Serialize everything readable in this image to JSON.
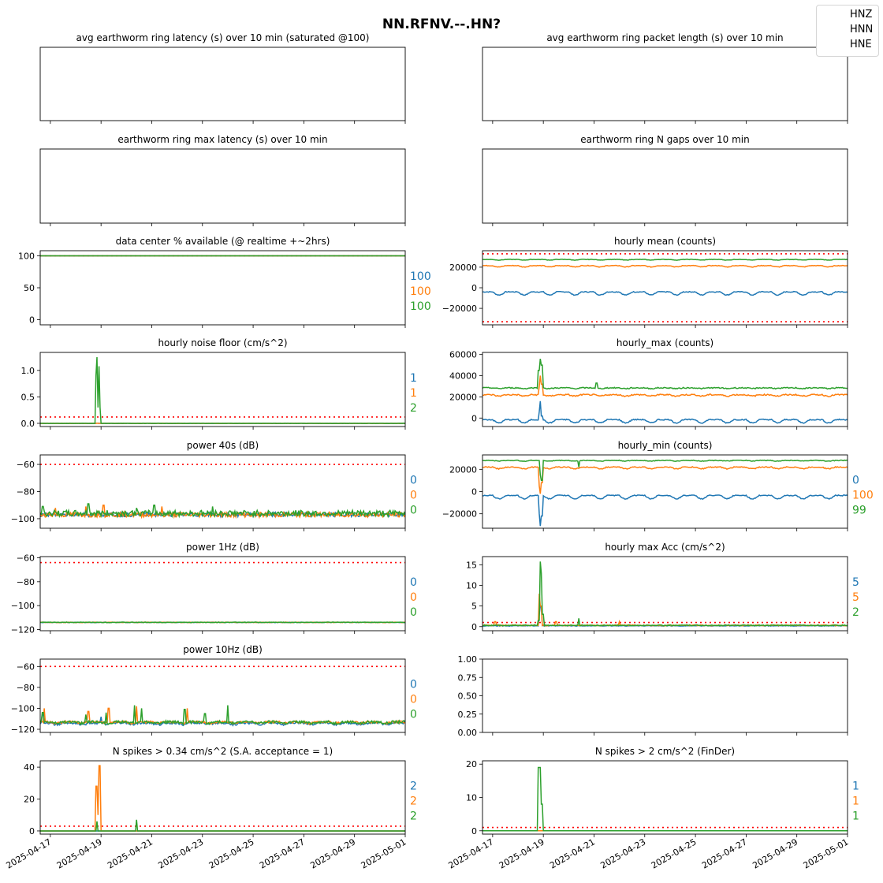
{
  "title": "NN.RFNV.--.HN?",
  "legend": [
    "HNZ",
    "HNN",
    "HNE"
  ],
  "colors": {
    "HNZ": "#1f77b4",
    "HNN": "#ff7f0e",
    "HNE": "#2ca02c",
    "threshold": "#ff0000"
  },
  "chart_data": [
    {
      "id": "p1",
      "type": "line",
      "title": "avg earthworm ring latency (s)   over 10 min (saturated @100)",
      "ylim": null,
      "yticks": [],
      "series": [],
      "thresholds": [],
      "annotations": []
    },
    {
      "id": "p2",
      "type": "line",
      "title": "avg earthworm ring packet length (s)   over 10 min",
      "ylim": null,
      "yticks": [],
      "series": [],
      "thresholds": [],
      "annotations": []
    },
    {
      "id": "p3",
      "type": "line",
      "title": "earthworm ring max latency (s)   over 10 min",
      "ylim": null,
      "yticks": [],
      "series": [],
      "thresholds": [],
      "annotations": []
    },
    {
      "id": "p4",
      "type": "line",
      "title": "earthworm ring N gaps   over 10 min",
      "ylim": null,
      "yticks": [],
      "series": [],
      "thresholds": [],
      "annotations": []
    },
    {
      "id": "p5",
      "type": "line",
      "title": "data center % available (@ realtime +~2hrs)",
      "ylim": [
        -8,
        108
      ],
      "yticks": [
        0,
        50,
        100
      ],
      "series": [
        {
          "name": "HNZ",
          "baseline": 100,
          "noise": 0,
          "spikes": []
        },
        {
          "name": "HNN",
          "baseline": 100,
          "noise": 0,
          "spikes": []
        },
        {
          "name": "HNE",
          "baseline": 100,
          "noise": 0,
          "spikes": []
        }
      ],
      "thresholds": [
        100
      ],
      "annotations": [
        "100",
        "100",
        "100"
      ]
    },
    {
      "id": "p6",
      "type": "line",
      "title": "hourly mean (counts)",
      "ylim": [
        -36000,
        36000
      ],
      "yticks": [
        -20000,
        0,
        20000
      ],
      "series": [
        {
          "name": "HNZ",
          "baseline": -4000,
          "daily_amp": 3000,
          "noise": 400,
          "spikes": []
        },
        {
          "name": "HNN",
          "baseline": 21500,
          "daily_amp": 1600,
          "noise": 300,
          "spikes": []
        },
        {
          "name": "HNE",
          "baseline": 27500,
          "daily_amp": 700,
          "noise": 200,
          "spikes": []
        }
      ],
      "thresholds": [
        33000,
        -33000
      ],
      "annotations": []
    },
    {
      "id": "p7",
      "type": "line",
      "title": "hourly noise floor (cm/s^2)",
      "ylim": [
        -0.06,
        1.34
      ],
      "yticks": [
        0.0,
        0.5,
        1.0
      ],
      "series": [
        {
          "name": "HNZ",
          "baseline": 0.0,
          "noise": 0.002,
          "spikes": []
        },
        {
          "name": "HNN",
          "baseline": 0.0,
          "noise": 0.002,
          "spikes": []
        },
        {
          "name": "HNE",
          "baseline": 0.0,
          "noise": 0.002,
          "spikes": [
            [
              2.8,
              0.9
            ],
            [
              2.85,
              1.25
            ],
            [
              2.9,
              0.3
            ],
            [
              2.93,
              1.08
            ],
            [
              2.96,
              0.3
            ]
          ]
        }
      ],
      "thresholds": [
        0.12
      ],
      "annotations": [
        "1",
        "1",
        "2"
      ]
    },
    {
      "id": "p8",
      "type": "line",
      "title": "hourly_max (counts)",
      "ylim": [
        -8000,
        62000
      ],
      "yticks": [
        0,
        20000,
        40000,
        60000
      ],
      "series": [
        {
          "name": "HNZ",
          "baseline": -1500,
          "daily_amp": 3000,
          "noise": 500,
          "spikes": [
            [
              2.85,
              6000
            ],
            [
              2.9,
              16000
            ],
            [
              2.95,
              2000
            ]
          ]
        },
        {
          "name": "HNN",
          "baseline": 22000,
          "daily_amp": 1500,
          "noise": 600,
          "spikes": [
            [
              2.85,
              30000
            ],
            [
              2.9,
              40000
            ],
            [
              2.95,
              32000
            ]
          ]
        },
        {
          "name": "HNE",
          "baseline": 28500,
          "daily_amp": 800,
          "noise": 500,
          "spikes": [
            [
              2.82,
              45000
            ],
            [
              2.87,
              56000
            ],
            [
              2.93,
              50000
            ],
            [
              5.1,
              33000
            ]
          ]
        }
      ],
      "thresholds": [],
      "annotations": []
    },
    {
      "id": "p9",
      "type": "line",
      "title": "power 40s (dB)",
      "ylim": [
        -107,
        -53
      ],
      "yticks": [
        -100,
        -80,
        -60
      ],
      "series": [
        {
          "name": "HNZ",
          "baseline": -97,
          "noise": 1.5,
          "spikes": []
        },
        {
          "name": "HNN",
          "baseline": -97,
          "noise": 1.8,
          "spikes": [
            [
              1.2,
              -92
            ],
            [
              2.4,
              -91
            ],
            [
              3.1,
              -90
            ],
            [
              5.4,
              -91
            ]
          ]
        },
        {
          "name": "HNE",
          "baseline": -96,
          "noise": 2.2,
          "spikes": [
            [
              0.7,
              -91
            ],
            [
              2.5,
              -89
            ],
            [
              4.4,
              -92
            ],
            [
              5.1,
              -90
            ],
            [
              7.4,
              -91
            ]
          ]
        }
      ],
      "thresholds": [
        -60
      ],
      "annotations": [
        "0",
        "0",
        "0"
      ]
    },
    {
      "id": "p10",
      "type": "line",
      "title": "hourly_min (counts)",
      "ylim": [
        -33000,
        33000
      ],
      "yticks": [
        -20000,
        0,
        20000
      ],
      "series": [
        {
          "name": "HNZ",
          "baseline": -3500,
          "daily_amp": 3000,
          "noise": 400,
          "spikes": [
            [
              2.85,
              -20000
            ],
            [
              2.9,
              -31000
            ],
            [
              2.95,
              -22000
            ]
          ]
        },
        {
          "name": "HNN",
          "baseline": 22000,
          "daily_amp": 1800,
          "noise": 400,
          "spikes": [
            [
              2.85,
              5000
            ],
            [
              2.9,
              -2000
            ],
            [
              2.95,
              8000
            ]
          ]
        },
        {
          "name": "HNE",
          "baseline": 28000,
          "daily_amp": 700,
          "noise": 300,
          "spikes": [
            [
              2.88,
              15000
            ],
            [
              2.93,
              10000
            ],
            [
              4.4,
              22000
            ]
          ]
        }
      ],
      "thresholds": [],
      "annotations": [
        "0",
        "100",
        "99"
      ]
    },
    {
      "id": "p11",
      "type": "line",
      "title": "power 1Hz (dB)",
      "ylim": [
        -121,
        -59
      ],
      "yticks": [
        -120,
        -100,
        -80,
        -60
      ],
      "series": [
        {
          "name": "HNZ",
          "baseline": -114,
          "noise": 0.2,
          "spikes": []
        },
        {
          "name": "HNN",
          "baseline": -114,
          "noise": 0.2,
          "spikes": []
        },
        {
          "name": "HNE",
          "baseline": -114,
          "noise": 0.25,
          "spikes": []
        }
      ],
      "thresholds": [
        -64
      ],
      "annotations": [
        "0",
        "0",
        "0"
      ]
    },
    {
      "id": "p12",
      "type": "line",
      "title": "hourly max Acc (cm/s^2)",
      "ylim": [
        -1,
        17
      ],
      "yticks": [
        0,
        5,
        10,
        15
      ],
      "series": [
        {
          "name": "HNZ",
          "baseline": 0.2,
          "noise": 0.08,
          "spikes": [
            [
              2.85,
              3
            ],
            [
              2.9,
              5
            ]
          ]
        },
        {
          "name": "HNN",
          "baseline": 0.3,
          "noise": 0.1,
          "spikes": [
            [
              1.1,
              1.2
            ],
            [
              2.85,
              8
            ],
            [
              2.9,
              5
            ],
            [
              3.5,
              1.2
            ],
            [
              6.0,
              1.2
            ]
          ]
        },
        {
          "name": "HNE",
          "baseline": 0.3,
          "noise": 0.1,
          "spikes": [
            [
              2.82,
              1.5
            ],
            [
              2.87,
              15.8
            ],
            [
              2.93,
              13
            ],
            [
              2.97,
              3
            ],
            [
              4.4,
              2
            ]
          ]
        }
      ],
      "thresholds": [
        1
      ],
      "annotations": [
        "5",
        "5",
        "2"
      ]
    },
    {
      "id": "p13",
      "type": "line",
      "title": "power 10Hz (dB)",
      "ylim": [
        -123,
        -53
      ],
      "yticks": [
        -120,
        -100,
        -80,
        -60
      ],
      "series": [
        {
          "name": "HNZ",
          "baseline": -114,
          "daily_amp": 1.5,
          "noise": 1.0,
          "spikes": [
            [
              0.7,
              -106
            ],
            [
              3.0,
              -108
            ]
          ]
        },
        {
          "name": "HNN",
          "baseline": -113,
          "daily_amp": 1.5,
          "noise": 1.0,
          "spikes": [
            [
              0.75,
              -100
            ],
            [
              2.5,
              -103
            ],
            [
              3.3,
              -100
            ],
            [
              4.4,
              -98
            ],
            [
              6.4,
              -100
            ]
          ]
        },
        {
          "name": "HNE",
          "baseline": -113,
          "daily_amp": 1.5,
          "noise": 1.2,
          "spikes": [
            [
              0.7,
              -104
            ],
            [
              2.4,
              -106
            ],
            [
              3.2,
              -104
            ],
            [
              4.33,
              -97
            ],
            [
              4.6,
              -100
            ],
            [
              6.3,
              -101
            ],
            [
              7.1,
              -105
            ],
            [
              8.0,
              -97
            ]
          ]
        }
      ],
      "thresholds": [
        -60
      ],
      "annotations": [
        "0",
        "0",
        "0"
      ]
    },
    {
      "id": "p14",
      "type": "empty",
      "title": "",
      "ylim": [
        0,
        1
      ],
      "yticks": [
        0.0,
        0.25,
        0.5,
        0.75,
        1.0
      ],
      "series": [],
      "thresholds": [],
      "annotations": []
    },
    {
      "id": "p15",
      "type": "line",
      "title": "N spikes > 0.34 cm/s^2 (S.A. acceptance = 1)",
      "ylim": [
        -2,
        44
      ],
      "yticks": [
        0,
        20,
        40
      ],
      "series": [
        {
          "name": "HNZ",
          "baseline": 0,
          "noise": 0,
          "spikes": []
        },
        {
          "name": "HNN",
          "baseline": 0,
          "noise": 0,
          "spikes": [
            [
              2.82,
              28
            ],
            [
              2.87,
              10
            ],
            [
              2.93,
              41
            ]
          ]
        },
        {
          "name": "HNE",
          "baseline": 0,
          "noise": 0,
          "spikes": [
            [
              2.85,
              6
            ],
            [
              4.4,
              7
            ]
          ]
        }
      ],
      "thresholds": [
        3
      ],
      "annotations": [
        "2",
        "2",
        "2"
      ]
    },
    {
      "id": "p16",
      "type": "line",
      "title": "N spikes > 2 cm/s^2 (FinDer)",
      "ylim": [
        -1,
        21
      ],
      "yticks": [
        0,
        10,
        20
      ],
      "series": [
        {
          "name": "HNZ",
          "baseline": 0,
          "noise": 0,
          "spikes": []
        },
        {
          "name": "HNN",
          "baseline": 0,
          "noise": 0,
          "spikes": []
        },
        {
          "name": "HNE",
          "baseline": 0,
          "noise": 0,
          "spikes": [
            [
              2.82,
              19
            ],
            [
              2.88,
              19
            ],
            [
              2.93,
              8
            ]
          ]
        }
      ],
      "thresholds": [
        1
      ],
      "annotations": [
        "1",
        "1",
        "1"
      ]
    }
  ],
  "x_axis": {
    "type": "date",
    "start": "2025-04-16",
    "end": "2025-05-01",
    "ticks": [
      "2025-04-17",
      "2025-04-19",
      "2025-04-21",
      "2025-04-23",
      "2025-04-25",
      "2025-04-27",
      "2025-04-29",
      "2025-05-01"
    ]
  }
}
